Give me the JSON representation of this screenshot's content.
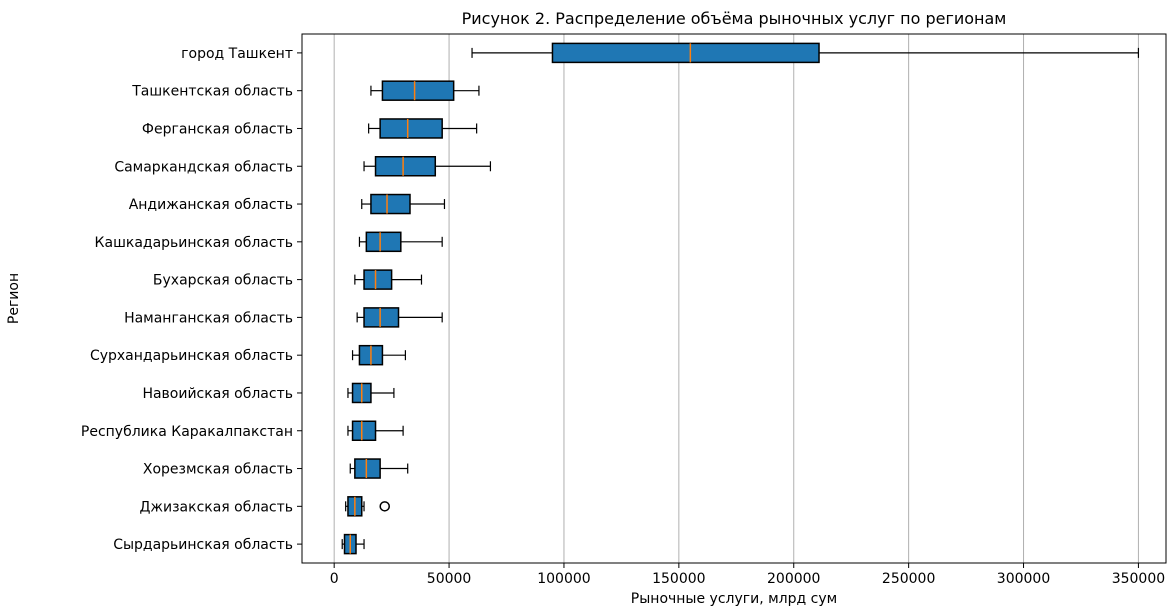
{
  "chart_data": {
    "type": "boxplot",
    "orientation": "horizontal",
    "title": "Рисунок 2. Распределение объёма рыночных услуг по регионам",
    "xlabel": "Рыночные услуги, млрд сум",
    "ylabel": "Регион",
    "xlim": [
      -14000,
      362000
    ],
    "xticks": [
      0,
      50000,
      100000,
      150000,
      200000,
      250000,
      300000,
      350000
    ],
    "grid": "x",
    "colors": {
      "box": "#1f77b4",
      "median": "#ff7f0e",
      "edge": "#000000",
      "grid": "#b0b0b0"
    },
    "categories": [
      "город Ташкент",
      "Ташкентская область",
      "Ферганская область",
      "Самаркандская область",
      "Андижанская область",
      "Кашкадарьинская область",
      "Бухарская область",
      "Наманганская область",
      "Сурхандарьинская область",
      "Навоийская область",
      "Республика Каракалпакстан",
      "Хорезмская область",
      "Джизакская область",
      "Сырдарьинская область"
    ],
    "boxes": [
      {
        "whislo": 60000,
        "q1": 95000,
        "med": 155000,
        "q3": 211000,
        "whishi": 350000,
        "fliers": []
      },
      {
        "whislo": 16000,
        "q1": 21000,
        "med": 35000,
        "q3": 52000,
        "whishi": 63000,
        "fliers": []
      },
      {
        "whislo": 15000,
        "q1": 20000,
        "med": 32000,
        "q3": 47000,
        "whishi": 62000,
        "fliers": []
      },
      {
        "whislo": 13000,
        "q1": 18000,
        "med": 30000,
        "q3": 44000,
        "whishi": 68000,
        "fliers": []
      },
      {
        "whislo": 12000,
        "q1": 16000,
        "med": 23000,
        "q3": 33000,
        "whishi": 48000,
        "fliers": []
      },
      {
        "whislo": 11000,
        "q1": 14000,
        "med": 20000,
        "q3": 29000,
        "whishi": 47000,
        "fliers": []
      },
      {
        "whislo": 9000,
        "q1": 13000,
        "med": 18000,
        "q3": 25000,
        "whishi": 38000,
        "fliers": []
      },
      {
        "whislo": 10000,
        "q1": 13000,
        "med": 20000,
        "q3": 28000,
        "whishi": 47000,
        "fliers": []
      },
      {
        "whislo": 8000,
        "q1": 11000,
        "med": 16000,
        "q3": 21000,
        "whishi": 31000,
        "fliers": []
      },
      {
        "whislo": 6000,
        "q1": 8000,
        "med": 12000,
        "q3": 16000,
        "whishi": 26000,
        "fliers": []
      },
      {
        "whislo": 6000,
        "q1": 8000,
        "med": 12000,
        "q3": 18000,
        "whishi": 30000,
        "fliers": []
      },
      {
        "whislo": 7000,
        "q1": 9000,
        "med": 14000,
        "q3": 20000,
        "whishi": 32000,
        "fliers": []
      },
      {
        "whislo": 5000,
        "q1": 6000,
        "med": 9000,
        "q3": 12000,
        "whishi": 13000,
        "fliers": [
          22000
        ]
      },
      {
        "whislo": 3500,
        "q1": 4500,
        "med": 7000,
        "q3": 9500,
        "whishi": 13000,
        "fliers": []
      }
    ]
  }
}
